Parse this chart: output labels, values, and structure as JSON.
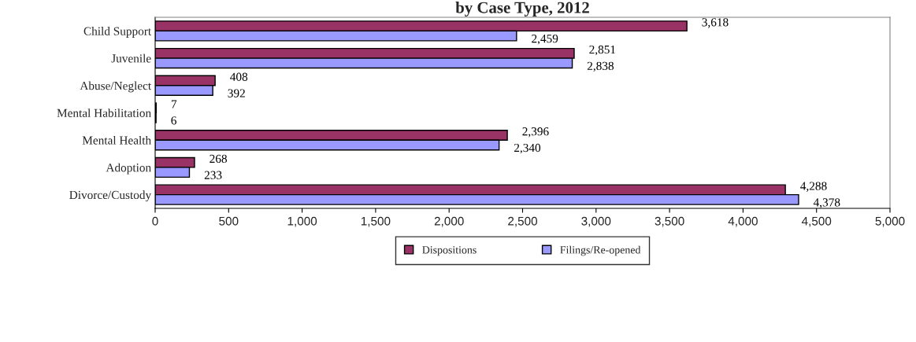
{
  "chart_data": {
    "type": "bar",
    "orientation": "horizontal",
    "title": "by Case Type, 2012",
    "categories": [
      "Child Support",
      "Juvenile",
      "Abuse/Neglect",
      "Mental Habilitation",
      "Mental Health",
      "Adoption",
      "Divorce/Custody"
    ],
    "series": [
      {
        "name": "Dispositions",
        "color": "#993366",
        "values": [
          3618,
          2851,
          408,
          7,
          2396,
          268,
          4288
        ],
        "value_labels": [
          "3,618",
          "2,851",
          "408",
          "7",
          "2,396",
          "268",
          "4,288"
        ]
      },
      {
        "name": "Filings/Re-opened",
        "color": "#9999ff",
        "values": [
          2459,
          2838,
          392,
          6,
          2340,
          233,
          4378
        ],
        "value_labels": [
          "2,459",
          "2,838",
          "392",
          "6",
          "2,340",
          "233",
          "4,378"
        ]
      }
    ],
    "xlim": [
      0,
      5000
    ],
    "xticks": [
      0,
      {
        "value": 500,
        "label": "500"
      },
      {
        "value": 1000,
        "label": "1,000"
      },
      {
        "value": 1500,
        "label": "1,500"
      },
      {
        "value": 2000,
        "label": "2,000"
      },
      {
        "value": 2500,
        "label": "2,500"
      },
      {
        "value": 3000,
        "label": "3,000"
      },
      {
        "value": 3500,
        "label": "3,500"
      },
      {
        "value": 4000,
        "label": "4,000"
      },
      {
        "value": 4500,
        "label": "4,500"
      },
      {
        "value": 5000,
        "label": "5,000"
      }
    ],
    "grid": false,
    "legend": "bottom"
  }
}
